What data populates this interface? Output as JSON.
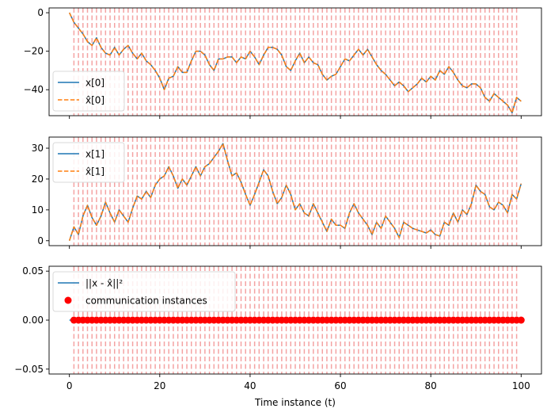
{
  "colors": {
    "x_series": "#1f77b4",
    "xhat_series": "#ff7f0e",
    "comm_lines": "#f4a3a3",
    "comm_points": "#ff0000",
    "axes": "#000000",
    "legend_border": "#d9d9d9"
  },
  "xlabel": "Time instance (t)",
  "chart_data": [
    {
      "type": "line",
      "name": "panel-1",
      "x_ticks": [
        0,
        20,
        40,
        60,
        80,
        100
      ],
      "y_ticks": [
        0,
        -20,
        -40
      ],
      "xlim": [
        -4.5,
        104.5
      ],
      "ylim": [
        -53.5,
        2.5
      ],
      "show_x_tick_labels": false,
      "grid": false,
      "legend_position": "lower left",
      "communication_lines_t": "every integer t from 1 to 99",
      "series": [
        {
          "name": "x[0]",
          "style": "solid",
          "color": "#1f77b4",
          "x": [
            0,
            1,
            2,
            3,
            4,
            5,
            6,
            7,
            8,
            9,
            10,
            11,
            12,
            13,
            14,
            15,
            16,
            17,
            18,
            19,
            20,
            21,
            22,
            23,
            24,
            25,
            26,
            27,
            28,
            29,
            30,
            31,
            32,
            33,
            34,
            35,
            36,
            37,
            38,
            39,
            40,
            41,
            42,
            43,
            44,
            45,
            46,
            47,
            48,
            49,
            50,
            51,
            52,
            53,
            54,
            55,
            56,
            57,
            58,
            59,
            60,
            61,
            62,
            63,
            64,
            65,
            66,
            67,
            68,
            69,
            70,
            71,
            72,
            73,
            74,
            75,
            76,
            77,
            78,
            79,
            80,
            81,
            82,
            83,
            84,
            85,
            86,
            87,
            88,
            89,
            90,
            91,
            92,
            93,
            94,
            95,
            96,
            97,
            98,
            99,
            100
          ],
          "y": [
            0,
            -5,
            -8,
            -11,
            -15,
            -17,
            -13,
            -18,
            -21,
            -22,
            -18,
            -22,
            -19,
            -17,
            -21,
            -24,
            -21,
            -25,
            -27,
            -30,
            -34,
            -40,
            -34,
            -33,
            -28,
            -31,
            -31,
            -25,
            -20,
            -20,
            -22,
            -27,
            -30,
            -24,
            -24,
            -23,
            -23,
            -26,
            -23,
            -24,
            -20,
            -23,
            -27,
            -22,
            -18,
            -18,
            -19,
            -22,
            -28,
            -30,
            -25,
            -21,
            -26,
            -23,
            -26,
            -27,
            -32,
            -35,
            -33,
            -32,
            -28,
            -24,
            -25,
            -22,
            -19,
            -22,
            -19,
            -23,
            -27,
            -30,
            -32,
            -35,
            -38,
            -36,
            -38,
            -41,
            -39,
            -37,
            -34,
            -36,
            -33,
            -35,
            -30,
            -32,
            -28,
            -31,
            -35,
            -38,
            -39,
            -37,
            -37,
            -39,
            -44,
            -46,
            -42,
            -44,
            -46,
            -48,
            -52,
            -44,
            -46
          ]
        },
        {
          "name": "x̂[0]",
          "style": "dashed",
          "color": "#ff7f0e",
          "x": [
            0,
            1,
            2,
            3,
            4,
            5,
            6,
            7,
            8,
            9,
            10,
            11,
            12,
            13,
            14,
            15,
            16,
            17,
            18,
            19,
            20,
            21,
            22,
            23,
            24,
            25,
            26,
            27,
            28,
            29,
            30,
            31,
            32,
            33,
            34,
            35,
            36,
            37,
            38,
            39,
            40,
            41,
            42,
            43,
            44,
            45,
            46,
            47,
            48,
            49,
            50,
            51,
            52,
            53,
            54,
            55,
            56,
            57,
            58,
            59,
            60,
            61,
            62,
            63,
            64,
            65,
            66,
            67,
            68,
            69,
            70,
            71,
            72,
            73,
            74,
            75,
            76,
            77,
            78,
            79,
            80,
            81,
            82,
            83,
            84,
            85,
            86,
            87,
            88,
            89,
            90,
            91,
            92,
            93,
            94,
            95,
            96,
            97,
            98,
            99,
            100
          ],
          "y": [
            0,
            -5,
            -8,
            -11,
            -15,
            -17,
            -13,
            -18,
            -21,
            -22,
            -18,
            -22,
            -19,
            -17,
            -21,
            -24,
            -21,
            -25,
            -27,
            -30,
            -34,
            -40,
            -34,
            -33,
            -28,
            -31,
            -31,
            -25,
            -20,
            -20,
            -22,
            -27,
            -30,
            -24,
            -24,
            -23,
            -23,
            -26,
            -23,
            -24,
            -20,
            -23,
            -27,
            -22,
            -18,
            -18,
            -19,
            -22,
            -28,
            -30,
            -25,
            -21,
            -26,
            -23,
            -26,
            -27,
            -32,
            -35,
            -33,
            -32,
            -28,
            -24,
            -25,
            -22,
            -19,
            -22,
            -19,
            -23,
            -27,
            -30,
            -32,
            -35,
            -38,
            -36,
            -38,
            -41,
            -39,
            -37,
            -34,
            -36,
            -33,
            -35,
            -30,
            -32,
            -28,
            -31,
            -35,
            -38,
            -39,
            -37,
            -37,
            -39,
            -44,
            -46,
            -42,
            -44,
            -46,
            -48,
            -52,
            -44,
            -46
          ]
        }
      ]
    },
    {
      "type": "line",
      "name": "panel-2",
      "x_ticks": [
        0,
        20,
        40,
        60,
        80,
        100
      ],
      "y_ticks": [
        0,
        10,
        20,
        30
      ],
      "xlim": [
        -4.5,
        104.5
      ],
      "ylim": [
        -1.6,
        33.6
      ],
      "show_x_tick_labels": false,
      "grid": false,
      "legend_position": "upper left",
      "communication_lines_t": "every integer t from 1 to 99",
      "series": [
        {
          "name": "x[1]",
          "style": "solid",
          "color": "#1f77b4",
          "x": [
            0,
            1,
            2,
            3,
            4,
            5,
            6,
            7,
            8,
            9,
            10,
            11,
            12,
            13,
            14,
            15,
            16,
            17,
            18,
            19,
            20,
            21,
            22,
            23,
            24,
            25,
            26,
            27,
            28,
            29,
            30,
            31,
            32,
            33,
            34,
            35,
            36,
            37,
            38,
            39,
            40,
            41,
            42,
            43,
            44,
            45,
            46,
            47,
            48,
            49,
            50,
            51,
            52,
            53,
            54,
            55,
            56,
            57,
            58,
            59,
            60,
            61,
            62,
            63,
            64,
            65,
            66,
            67,
            68,
            69,
            70,
            71,
            72,
            73,
            74,
            75,
            76,
            77,
            78,
            79,
            80,
            81,
            82,
            83,
            84,
            85,
            86,
            87,
            88,
            89,
            90,
            91,
            92,
            93,
            94,
            95,
            96,
            97,
            98,
            99,
            100
          ],
          "y": [
            0,
            4.5,
            2,
            8,
            11.5,
            7.5,
            5,
            8,
            12.5,
            9,
            6,
            10,
            8,
            6,
            10.5,
            14.5,
            13.5,
            16,
            14,
            18,
            20,
            21,
            24,
            21,
            17,
            20,
            18,
            21,
            24,
            21,
            24,
            25,
            27,
            29,
            31.5,
            26,
            21,
            22,
            19,
            15,
            11.5,
            15,
            19,
            23,
            21,
            16,
            12,
            14,
            18,
            15,
            10,
            12,
            9,
            8,
            12,
            9,
            6,
            3,
            7,
            5,
            5,
            4,
            9,
            12,
            9,
            7,
            5,
            2,
            6,
            4,
            8,
            6,
            4,
            1,
            6,
            5,
            4,
            3.5,
            3,
            2.5,
            3.5,
            2,
            1.5,
            6,
            5,
            9,
            6,
            10,
            8.5,
            12,
            18,
            16,
            15,
            11,
            10,
            12.5,
            11.5,
            9,
            15,
            13.5,
            18.5
          ]
        },
        {
          "name": "x̂[1]",
          "style": "dashed",
          "color": "#ff7f0e",
          "x": [
            0,
            1,
            2,
            3,
            4,
            5,
            6,
            7,
            8,
            9,
            10,
            11,
            12,
            13,
            14,
            15,
            16,
            17,
            18,
            19,
            20,
            21,
            22,
            23,
            24,
            25,
            26,
            27,
            28,
            29,
            30,
            31,
            32,
            33,
            34,
            35,
            36,
            37,
            38,
            39,
            40,
            41,
            42,
            43,
            44,
            45,
            46,
            47,
            48,
            49,
            50,
            51,
            52,
            53,
            54,
            55,
            56,
            57,
            58,
            59,
            60,
            61,
            62,
            63,
            64,
            65,
            66,
            67,
            68,
            69,
            70,
            71,
            72,
            73,
            74,
            75,
            76,
            77,
            78,
            79,
            80,
            81,
            82,
            83,
            84,
            85,
            86,
            87,
            88,
            89,
            90,
            91,
            92,
            93,
            94,
            95,
            96,
            97,
            98,
            99,
            100
          ],
          "y": [
            0,
            4.5,
            2,
            8,
            11.5,
            7.5,
            5,
            8,
            12.5,
            9,
            6,
            10,
            8,
            6,
            10.5,
            14.5,
            13.5,
            16,
            14,
            18,
            20,
            21,
            24,
            21,
            17,
            20,
            18,
            21,
            24,
            21,
            24,
            25,
            27,
            29,
            31.5,
            26,
            21,
            22,
            19,
            15,
            11.5,
            15,
            19,
            23,
            21,
            16,
            12,
            14,
            18,
            15,
            10,
            12,
            9,
            8,
            12,
            9,
            6,
            3,
            7,
            5,
            5,
            4,
            9,
            12,
            9,
            7,
            5,
            2,
            6,
            4,
            8,
            6,
            4,
            1,
            6,
            5,
            4,
            3.5,
            3,
            2.5,
            3.5,
            2,
            1.5,
            6,
            5,
            9,
            6,
            10,
            8.5,
            12,
            18,
            16,
            15,
            11,
            10,
            12.5,
            11.5,
            9,
            15,
            13.5,
            18.5
          ]
        }
      ]
    },
    {
      "type": "line",
      "name": "panel-3",
      "x_ticks": [
        0,
        20,
        40,
        60,
        80,
        100
      ],
      "x_tick_labels": [
        "0",
        "20",
        "40",
        "60",
        "80",
        "100"
      ],
      "y_ticks": [
        0.05,
        0.0,
        -0.05
      ],
      "y_tick_labels": [
        "0.05",
        "0.00",
        "−0.05"
      ],
      "xlim": [
        -4.5,
        104.5
      ],
      "ylim": [
        -0.055,
        0.055
      ],
      "show_x_tick_labels": true,
      "grid": false,
      "legend_position": "upper left",
      "communication_lines_t": "every integer t from 1 to 99",
      "series": [
        {
          "name": "||x - x̂||²",
          "style": "solid",
          "color": "#1f77b4",
          "x": [
            0,
            100
          ],
          "y": [
            0,
            0
          ]
        },
        {
          "name": "communication instances",
          "style": "scatter",
          "color": "#ff0000",
          "x": "every integer t from 1 to 100",
          "y": 0
        }
      ]
    }
  ]
}
